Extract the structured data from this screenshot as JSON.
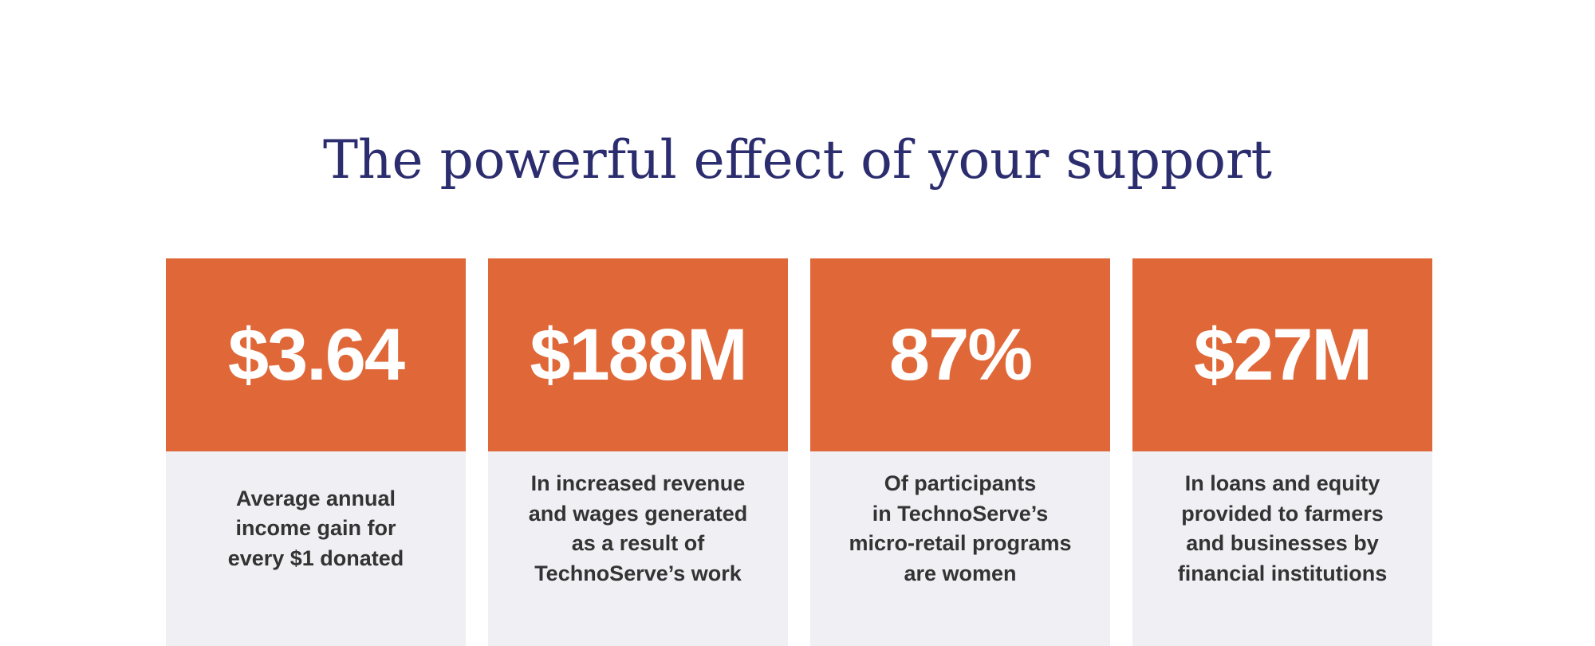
{
  "heading": "The powerful effect of your support",
  "colors": {
    "heading": "#2b2d6e",
    "accent": "#e06838",
    "panel": "#efeff4"
  },
  "stats": [
    {
      "value": "$3.64",
      "description": "Average annual\nincome gain for\nevery $1 donated"
    },
    {
      "value": "$188M",
      "description": "In increased revenue\nand wages generated\nas a result of\nTechnoServe’s work"
    },
    {
      "value": "87%",
      "description": "Of participants\nin TechnoServe’s\nmicro-retail programs\nare women"
    },
    {
      "value": "$27M",
      "description": "In loans and equity\nprovided to farmers\nand businesses by\nfinancial institutions"
    }
  ]
}
